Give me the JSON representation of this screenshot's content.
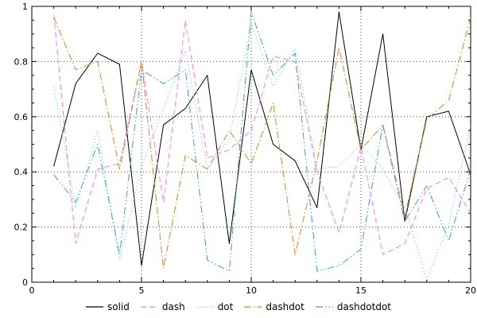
{
  "chart_data": {
    "type": "line",
    "title": "",
    "xlabel": "",
    "ylabel": "",
    "xlim": [
      0,
      20
    ],
    "ylim": [
      0,
      1
    ],
    "xticks": [
      0,
      5,
      10,
      15,
      20
    ],
    "xtick_labels": [
      "0",
      "5",
      "10",
      "15",
      "20"
    ],
    "yticks": [
      0,
      0.2,
      0.4,
      0.6,
      0.8,
      1
    ],
    "ytick_labels": [
      "0",
      "0.2",
      "0.4",
      "0.6",
      "0.8",
      "1"
    ],
    "grid": true,
    "legend_position": "bottom",
    "x": [
      1,
      2,
      3,
      4,
      5,
      6,
      7,
      8,
      9,
      10,
      11,
      12,
      13,
      14,
      15,
      16,
      17,
      18,
      19,
      20
    ],
    "series": [
      {
        "name": "solid",
        "color": "#000000",
        "dash": "solid",
        "values": [
          0.42,
          0.72,
          0.83,
          0.79,
          0.06,
          0.57,
          0.63,
          0.75,
          0.14,
          0.77,
          0.5,
          0.44,
          0.27,
          0.98,
          0.48,
          0.9,
          0.22,
          0.6,
          0.62,
          0.39
        ]
      },
      {
        "name": "dash",
        "color": "#ee82ee",
        "dash": "dash",
        "values": [
          0.97,
          0.14,
          0.41,
          0.43,
          0.8,
          0.29,
          0.95,
          0.45,
          0.48,
          0.55,
          0.82,
          0.8,
          0.4,
          0.18,
          0.49,
          0.1,
          0.14,
          0.34,
          0.38,
          0.25
        ]
      },
      {
        "name": "dot",
        "color": "#7fd8d8",
        "dash": "dot",
        "values": [
          0.71,
          0.27,
          0.55,
          0.08,
          0.42,
          0.63,
          0.84,
          0.41,
          0.52,
          0.94,
          0.71,
          0.85,
          0.41,
          0.42,
          0.5,
          0.41,
          0.27,
          0.01,
          0.21,
          0.57
        ]
      },
      {
        "name": "dashdot",
        "color": "#d9861a",
        "dash": "dashdot",
        "values": [
          0.96,
          0.77,
          0.8,
          0.41,
          0.8,
          0.05,
          0.46,
          0.41,
          0.55,
          0.43,
          0.65,
          0.1,
          0.44,
          0.85,
          0.48,
          0.57,
          0.24,
          0.59,
          0.66,
          0.96
        ]
      },
      {
        "name": "dashdotdot",
        "color": "#3a9fc4",
        "dash": "dashdotdot",
        "values": [
          0.39,
          0.29,
          0.5,
          0.1,
          0.77,
          0.72,
          0.77,
          0.08,
          0.04,
          0.98,
          0.75,
          0.83,
          0.04,
          0.06,
          0.12,
          0.57,
          0.22,
          0.35,
          0.15,
          0.41
        ]
      }
    ]
  }
}
